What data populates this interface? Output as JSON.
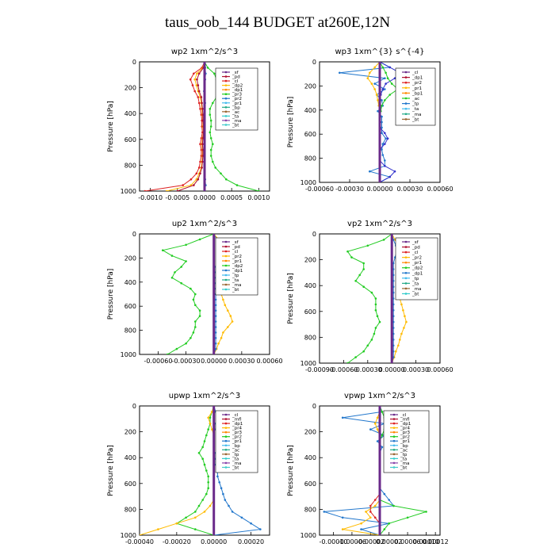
{
  "figure_title": "taus_oob_144  BUDGET at260E,12N",
  "chart_data": [
    {
      "type": "line",
      "title": "wp2  1xm^2/s^3",
      "ylabel": "Pressure [hPa]",
      "xlim": [
        -0.0012,
        0.0012
      ],
      "ylim": [
        1000,
        0
      ],
      "xticks": [
        "-0.0010",
        "-0.0005",
        "0.0000",
        "0.0005",
        "0.0010"
      ],
      "xtick_values": [
        -0.001,
        -0.0005,
        0,
        0.0005,
        0.001
      ],
      "yticks": [
        "0",
        "200",
        "400",
        "600",
        "800",
        "1000"
      ],
      "legend": [
        "_sf",
        "_pd",
        "_cl",
        "_dp2",
        "_dp1",
        "_pr3",
        "_pr2",
        "_pr1",
        "_bp",
        "_ac",
        "_ta",
        "_ma",
        "_bt"
      ],
      "series": [
        {
          "name": "_pr1",
          "color": "#22cc22",
          "values": [
            0,
            6e-05,
            0.00018,
            0.00022,
            0.00025,
            0.0003,
            0.00022,
            0.00015,
            0.0001,
            0.0001,
            0.00012,
            0.00012,
            0.0001,
            0.00012,
            0.00015,
            0.00012,
            0.00012,
            0.00015,
            0.0002,
            0.0003,
            0.0004,
            0.0006,
            0.001
          ]
        },
        {
          "name": "_dp1",
          "color": "#dd2222",
          "values": [
            0,
            -5e-05,
            -0.0002,
            -0.00026,
            -0.00022,
            -0.00018,
            -0.00012,
            -0.0001,
            -8e-05,
            -6e-05,
            -5e-05,
            -5e-05,
            -4e-05,
            -6e-05,
            -8e-05,
            -6e-05,
            -6e-05,
            -8e-05,
            -0.0001,
            -0.00015,
            -0.00025,
            -0.0004,
            -0.0011
          ]
        },
        {
          "name": "_pr3",
          "color": "#ffbb00",
          "values": [
            0,
            -3e-05,
            -0.00014,
            -0.00018,
            -0.00015,
            -0.00012,
            -8e-05,
            -6e-05,
            -5e-05,
            -4e-05,
            -3e-05,
            -3e-05,
            -2e-05,
            -4e-05,
            -5e-05,
            -4e-05,
            -4e-05,
            -5e-05,
            -6e-05,
            -0.0001,
            -0.00015,
            -0.00025,
            -0.0007
          ]
        },
        {
          "name": "_pd",
          "color": "#b01030",
          "values": [
            0,
            -2e-05,
            -0.0001,
            -0.00014,
            -0.00012,
            -0.0001,
            -6e-05,
            -5e-05,
            -4e-05,
            -3e-05,
            -3e-05,
            -2e-05,
            -2e-05,
            -3e-05,
            -4e-05,
            -3e-05,
            -3e-05,
            -4e-05,
            -5e-05,
            -8e-05,
            -0.00012,
            -0.0002,
            -0.0005
          ]
        },
        {
          "name": "_ta",
          "color": "#2277cc",
          "values": [
            0,
            1e-05,
            2e-05,
            1e-05,
            0,
            -1e-05,
            0,
            1e-05,
            0,
            0,
            0,
            0,
            0,
            0,
            0,
            0,
            0,
            0,
            0,
            0,
            1e-05,
            2e-05,
            0
          ]
        },
        {
          "name": "_bt",
          "color": "#6a2a8a",
          "values": [
            0,
            0,
            0,
            0,
            0,
            0,
            0,
            0,
            0,
            0,
            0,
            0,
            0,
            0,
            0,
            0,
            0,
            0,
            0,
            0,
            0,
            0,
            0
          ]
        }
      ]
    },
    {
      "type": "line",
      "title": "wp3  1xm^{3} s^{-4}",
      "ylabel": "Pressure [hPa]",
      "xlim": [
        -0.0006,
        0.0006
      ],
      "ylim": [
        1000,
        0
      ],
      "xticks": [
        "-0.00060",
        "-0.00030",
        "0.00000",
        "0.00030",
        "0.00060"
      ],
      "xtick_values": [
        -0.0006,
        -0.0003,
        0,
        0.0003,
        0.0006
      ],
      "yticks": [
        "0",
        "200",
        "400",
        "600",
        "800",
        "1000"
      ],
      "legend": [
        "_cl",
        "_dp1",
        "_pr2",
        "_pr1",
        "_bp1",
        "_ac",
        "_tp",
        "_ta",
        "_ma",
        "_bt"
      ],
      "series": [
        {
          "name": "_ta",
          "color": "#2277cc",
          "values": [
            0,
            0.0001,
            -0.0004,
            5e-05,
            -5e-05,
            5e-05,
            -3e-05,
            2e-05,
            3e-05,
            -2e-05,
            2e-05,
            2e-05,
            2e-05,
            2e-05,
            6e-05,
            3e-05,
            2e-05,
            3e-05,
            5e-05,
            5e-05,
            -0.0001,
            0.0001,
            0
          ]
        },
        {
          "name": "_dp1",
          "color": "#3333cc",
          "values": [
            0,
            0.0001,
            0.0002,
            0.00015,
            6e-05,
            3e-05,
            1e-05,
            0,
            0,
            0,
            0,
            0,
            0,
            5e-05,
            8e-05,
            5e-05,
            0,
            0,
            0,
            5e-05,
            0.00015,
            0.0001,
            0
          ]
        },
        {
          "name": "_pr1",
          "color": "#22cc22",
          "values": [
            0,
            3e-05,
            6e-05,
            8e-05,
            0.00012,
            0.00018,
            0.0001,
            5e-05,
            2e-05,
            1e-05,
            0,
            0,
            0,
            0,
            0,
            0,
            0,
            0,
            0,
            0,
            0,
            0,
            0
          ]
        },
        {
          "name": "_pr2",
          "color": "#ffbb00",
          "values": [
            0,
            -5e-05,
            -0.0001,
            -0.00012,
            -8e-05,
            -5e-05,
            -3e-05,
            -2e-05,
            -1e-05,
            0,
            0,
            0,
            0,
            0,
            0,
            0,
            0,
            0,
            0,
            0,
            0,
            0,
            0
          ]
        },
        {
          "name": "_bt",
          "color": "#6a2a8a",
          "values": [
            0,
            0,
            0,
            0,
            0,
            0,
            0,
            0,
            0,
            0,
            0,
            0,
            0,
            0,
            0,
            0,
            0,
            0,
            0,
            0,
            0,
            0,
            0
          ]
        }
      ]
    },
    {
      "type": "line",
      "title": "up2  1xm^2/s^3",
      "ylabel": "Pressure [hPa]",
      "xlim": [
        -0.0008,
        0.0006
      ],
      "ylim": [
        1000,
        0
      ],
      "xticks": [
        "-0.00060",
        "-0.00030",
        "0.00000",
        "0.00030",
        "0.00060"
      ],
      "xtick_values": [
        -0.0006,
        -0.0003,
        0,
        0.0003,
        0.0006
      ],
      "yticks": [
        "0",
        "200",
        "400",
        "600",
        "800",
        "1000"
      ],
      "legend": [
        "_sf",
        "_pd",
        "_cl",
        "_pr2",
        "_pr1",
        "_dp2",
        "_dp1",
        "_tp",
        "_ta",
        "_ma",
        "_bt"
      ],
      "series": [
        {
          "name": "_pr1",
          "color": "#22cc22",
          "values": [
            0,
            -0.00015,
            -0.0003,
            -0.00055,
            -0.00045,
            -0.0003,
            -0.00035,
            -0.00042,
            -0.00045,
            -0.00035,
            -0.00025,
            -0.0002,
            -0.00022,
            -0.0002,
            -0.00015,
            -0.00015,
            -0.0002,
            -0.0002,
            -0.00022,
            -0.00025,
            -0.0003,
            -0.0004,
            -0.0005
          ]
        },
        {
          "name": "_pr2",
          "color": "#ffbb00",
          "values": [
            0,
            5e-05,
            0.0001,
            0.00012,
            0.00015,
            0.0002,
            0.00018,
            0.00015,
            0.00012,
            0.0001,
            8e-05,
            8e-05,
            0.0001,
            0.00012,
            0.00015,
            0.00018,
            0.0002,
            0.00015,
            0.0001,
            8e-05,
            5e-05,
            3e-05,
            0
          ]
        },
        {
          "name": "_dp1",
          "color": "#2277cc",
          "values": [
            0,
            3e-05,
            8e-05,
            0.0001,
            6e-05,
            3e-05,
            2e-05,
            2e-05,
            2e-05,
            2e-05,
            2e-05,
            2e-05,
            2e-05,
            2e-05,
            2e-05,
            2e-05,
            2e-05,
            2e-05,
            2e-05,
            2e-05,
            2e-05,
            2e-05,
            0
          ]
        },
        {
          "name": "_bt",
          "color": "#6a2a8a",
          "values": [
            0,
            0,
            0,
            0,
            0,
            0,
            0,
            0,
            0,
            0,
            0,
            0,
            0,
            0,
            0,
            0,
            0,
            0,
            0,
            0,
            0,
            0,
            0
          ]
        }
      ]
    },
    {
      "type": "line",
      "title": "vp2  1xm^2/s^3",
      "ylabel": "Pressure [hPa]",
      "xlim": [
        -0.0009,
        0.0006
      ],
      "ylim": [
        1000,
        0
      ],
      "xticks": [
        "-0.00090",
        "-0.00060",
        "-0.00030",
        "0.00000",
        "0.00030",
        "0.00060"
      ],
      "xtick_values": [
        -0.0009,
        -0.0006,
        -0.0003,
        0,
        0.0003,
        0.0006
      ],
      "yticks": [
        "0",
        "200",
        "400",
        "600",
        "800",
        "1000"
      ],
      "legend": [
        "_sf",
        "_pd",
        "_cl",
        "_pr2",
        "_pr1",
        "_dp2",
        "_dp1",
        "_tp",
        "_ta",
        "_ma",
        "_bt"
      ],
      "series": [
        {
          "name": "_pr1",
          "color": "#22cc22",
          "values": [
            0,
            -0.0001,
            -0.0003,
            -0.00055,
            -0.0005,
            -0.00035,
            -0.00035,
            -0.0004,
            -0.00045,
            -0.00035,
            -0.00025,
            -0.0002,
            -0.0002,
            -0.0002,
            -0.00018,
            -0.00015,
            -0.0002,
            -0.00022,
            -0.00025,
            -0.0003,
            -0.00035,
            -0.00045,
            -0.00055
          ]
        },
        {
          "name": "_pr2",
          "color": "#ffbb00",
          "values": [
            0,
            4e-05,
            0.0001,
            0.00015,
            0.00018,
            0.00022,
            0.0002,
            0.00018,
            0.00015,
            0.00012,
            0.0001,
            0.0001,
            0.00012,
            0.00014,
            0.00016,
            0.00018,
            0.00015,
            0.00012,
            0.0001,
            8e-05,
            5e-05,
            3e-05,
            0
          ]
        },
        {
          "name": "_dp1",
          "color": "#2277cc",
          "values": [
            0,
            2e-05,
            5e-05,
            6e-05,
            4e-05,
            2e-05,
            2e-05,
            2e-05,
            2e-05,
            2e-05,
            2e-05,
            2e-05,
            2e-05,
            2e-05,
            2e-05,
            2e-05,
            2e-05,
            2e-05,
            2e-05,
            2e-05,
            2e-05,
            2e-05,
            0
          ]
        },
        {
          "name": "_bt",
          "color": "#6a2a8a",
          "values": [
            0,
            0,
            0,
            0,
            0,
            0,
            0,
            0,
            0,
            0,
            0,
            0,
            0,
            0,
            0,
            0,
            0,
            0,
            0,
            0,
            0,
            0,
            0
          ]
        }
      ]
    },
    {
      "type": "line",
      "title": "upwp  1xm^2/s^3",
      "ylabel": "Pressure [hPa]",
      "xlim": [
        -0.0004,
        0.0003
      ],
      "ylim": [
        1000,
        0
      ],
      "xticks": [
        "-0.00040",
        "-0.00020",
        "0.00000",
        "0.00020"
      ],
      "xtick_values": [
        -0.0004,
        -0.0002,
        0,
        0.0002
      ],
      "yticks": [
        "0",
        "200",
        "400",
        "600",
        "800",
        "1000"
      ],
      "legend": [
        "_cl",
        "_mfl",
        "_dp1",
        "_pr4",
        "_pr3",
        "_pr2",
        "_pr1",
        "_bp",
        "_ac",
        "_tp",
        "_ta",
        "_ma",
        "_bt"
      ],
      "series": [
        {
          "name": "_pr1",
          "color": "#22cc22",
          "values": [
            0,
            -1e-05,
            -2e-05,
            -2e-05,
            -3e-05,
            -4e-05,
            -5e-05,
            -6e-05,
            -8e-05,
            -6e-05,
            -5e-05,
            -4e-05,
            -3e-05,
            -3e-05,
            -3e-05,
            -4e-05,
            -6e-05,
            -8e-05,
            -0.0001,
            -0.00015,
            -0.0002,
            -0.0001,
            0
          ]
        },
        {
          "name": "_pr2",
          "color": "#ffbb00",
          "values": [
            0,
            -1e-05,
            -3e-05,
            -2e-05,
            -1e-05,
            0,
            0,
            0,
            0,
            0,
            0,
            0,
            0,
            0,
            0,
            0,
            0,
            -2e-05,
            -5e-05,
            -0.0001,
            -0.0002,
            -0.0003,
            -0.0004
          ]
        },
        {
          "name": "_ta",
          "color": "#2277cc",
          "values": [
            0,
            1e-05,
            2e-05,
            1e-05,
            1e-05,
            2e-05,
            3e-05,
            2e-05,
            1e-05,
            1e-05,
            1e-05,
            2e-05,
            2e-05,
            3e-05,
            4e-05,
            5e-05,
            6e-05,
            8e-05,
            0.0001,
            0.00015,
            0.0002,
            0.00025,
            0
          ]
        },
        {
          "name": "_bt",
          "color": "#6a2a8a",
          "values": [
            0,
            0,
            0,
            0,
            0,
            0,
            0,
            0,
            0,
            0,
            0,
            0,
            0,
            0,
            0,
            0,
            0,
            0,
            0,
            0,
            0,
            0,
            0
          ]
        }
      ]
    },
    {
      "type": "line",
      "title": "vpwp  1xm^2/s^3",
      "ylabel": "Pressure [hPa]",
      "xlim": [
        -0.00013,
        0.00013
      ],
      "ylim": [
        1000,
        0
      ],
      "xticks": [
        "-0.00010",
        "-0.00006",
        "-0.00002",
        "0.00002",
        "0.00006",
        "0.00010",
        "0.00012"
      ],
      "xtick_values": [
        -0.0001,
        -6e-05,
        -2e-05,
        2e-05,
        6e-05,
        0.0001,
        0.00012
      ],
      "yticks": [
        "0",
        "200",
        "400",
        "600",
        "800",
        "1000"
      ],
      "legend": [
        "_cl",
        "_mfl",
        "_dp1",
        "_pr4",
        "_pr3",
        "_pr2",
        "_pr1",
        "_bp",
        "_ac",
        "_tp",
        "_ta",
        "_ma",
        "_bt"
      ],
      "series": [
        {
          "name": "_ta",
          "color": "#2277cc",
          "values": [
            0,
            5e-06,
            -8e-05,
            1e-05,
            -2e-05,
            1e-05,
            -5e-06,
            5e-06,
            0,
            0,
            0,
            0,
            0,
            0,
            0,
            1e-05,
            2e-05,
            3e-05,
            -0.00012,
            -8e-05,
            2e-05,
            -4e-05,
            0
          ]
        },
        {
          "name": "_pr1",
          "color": "#22cc22",
          "values": [
            0,
            5e-06,
            1e-05,
            2e-05,
            1e-05,
            5e-06,
            0,
            0,
            0,
            0,
            0,
            0,
            0,
            0,
            0,
            0,
            0,
            3e-05,
            0.0001,
            6e-05,
            2e-05,
            1e-05,
            0
          ]
        },
        {
          "name": "_pr2",
          "color": "#ffbb00",
          "values": [
            0,
            0,
            -5e-06,
            -1e-05,
            -5e-06,
            0,
            0,
            0,
            0,
            0,
            0,
            0,
            0,
            0,
            0,
            0,
            0,
            -1e-05,
            -3e-05,
            -2e-05,
            -4e-05,
            -8e-05,
            0
          ]
        },
        {
          "name": "_dp1",
          "color": "#dd2222",
          "values": [
            0,
            0,
            0,
            0,
            0,
            0,
            0,
            0,
            0,
            0,
            0,
            0,
            0,
            0,
            0,
            0,
            -1e-05,
            -2e-05,
            -2e-05,
            -1e-05,
            0,
            0,
            0
          ]
        },
        {
          "name": "_bt",
          "color": "#6a2a8a",
          "values": [
            0,
            0,
            0,
            0,
            0,
            0,
            0,
            0,
            0,
            0,
            0,
            0,
            0,
            0,
            0,
            0,
            0,
            0,
            0,
            0,
            0,
            0,
            0
          ]
        }
      ]
    }
  ]
}
